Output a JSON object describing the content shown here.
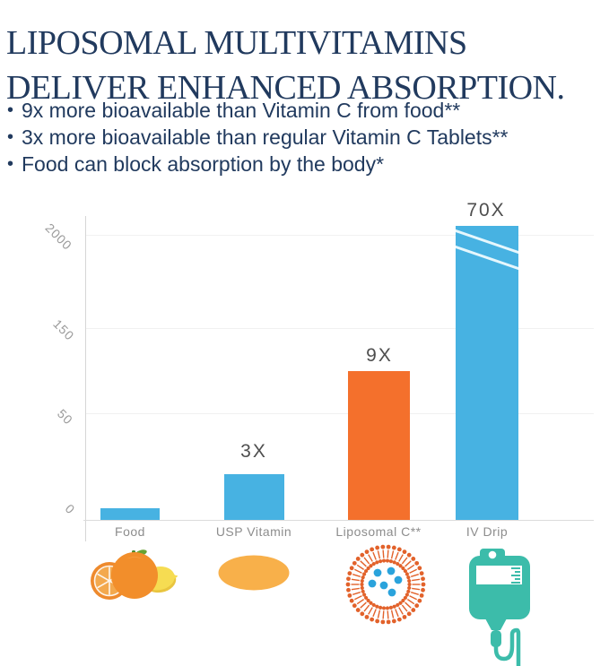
{
  "title": {
    "line1": "LIPOSOMAL MULTIVITAMINS",
    "line2": "DELIVER ENHANCED ABSORPTION."
  },
  "bullets": [
    "9x more bioavailable than Vitamin C from food**",
    "3x more bioavailable than regular Vitamin C Tablets**",
    "Food can block absorption by the body*"
  ],
  "bullet_glyph": "•",
  "chart_data": {
    "type": "bar",
    "title": "",
    "categories": [
      "Food",
      "USP Vitamin",
      "Liposomal C**",
      "IV Drip"
    ],
    "values": [
      1,
      3,
      9,
      70
    ],
    "value_labels": [
      "",
      "3X",
      "9X",
      "70X"
    ],
    "y_tick_labels": [
      "0",
      "50",
      "150",
      "2000"
    ],
    "xlabel": "",
    "ylabel": "",
    "ylim_note": "non-linear scale with axis break marks on IV Drip bar",
    "axis_break_on": "IV Drip",
    "bar_colors": [
      "#47b2e2",
      "#47b2e2",
      "#f4702c",
      "#47b2e2"
    ],
    "grid": "faint horizontal gridlines at 50, 150, 2000",
    "legend": "none"
  },
  "icons": [
    {
      "name": "citrus-fruit-icon",
      "for": "Food"
    },
    {
      "name": "vitamin-tablet-icon",
      "for": "USP Vitamin"
    },
    {
      "name": "liposome-icon",
      "for": "Liposomal C**"
    },
    {
      "name": "iv-drip-bag-icon",
      "for": "IV Drip"
    }
  ],
  "colors": {
    "navy_text": "#213a5e",
    "bar_blue": "#47b2e2",
    "bar_orange": "#f4702c",
    "axis_gray": "#9a9a9a",
    "label_gray": "#8d8d8d",
    "multiplier_gray": "#4e4e4e",
    "teal": "#3cbcaa",
    "liposome_orange": "#e2622b",
    "liposome_dot_blue": "#2aa3dc",
    "tablet_amber": "#f8b04a",
    "orange_fruit": "#f28e2b",
    "lemon_yellow": "#f6dc52"
  }
}
